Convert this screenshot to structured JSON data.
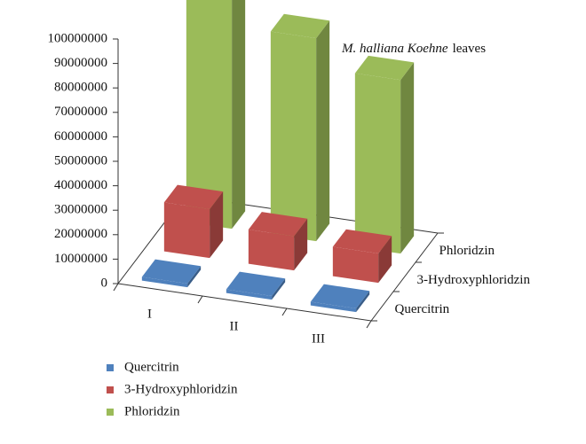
{
  "chart_data": {
    "type": "bar3d",
    "annotation": [
      "M. halliana Koehne",
      "leaves"
    ],
    "categories": [
      "I",
      "II",
      "III"
    ],
    "series": [
      {
        "name": "Quercitrin",
        "color": "#4f81bd",
        "values": [
          1500000,
          1500000,
          1500000
        ]
      },
      {
        "name": "3-Hydroxyphloridzin",
        "color": "#c0504d",
        "values": [
          20000000,
          14000000,
          12000000
        ]
      },
      {
        "name": "Phloridzin",
        "color": "#9bbb59",
        "values": [
          97000000,
          83000000,
          71000000
        ]
      }
    ],
    "ylim": [
      0,
      100000000
    ],
    "yticks": [
      0,
      10000000,
      20000000,
      30000000,
      40000000,
      50000000,
      60000000,
      70000000,
      80000000,
      90000000,
      100000000
    ],
    "legend": "bottom-left"
  }
}
